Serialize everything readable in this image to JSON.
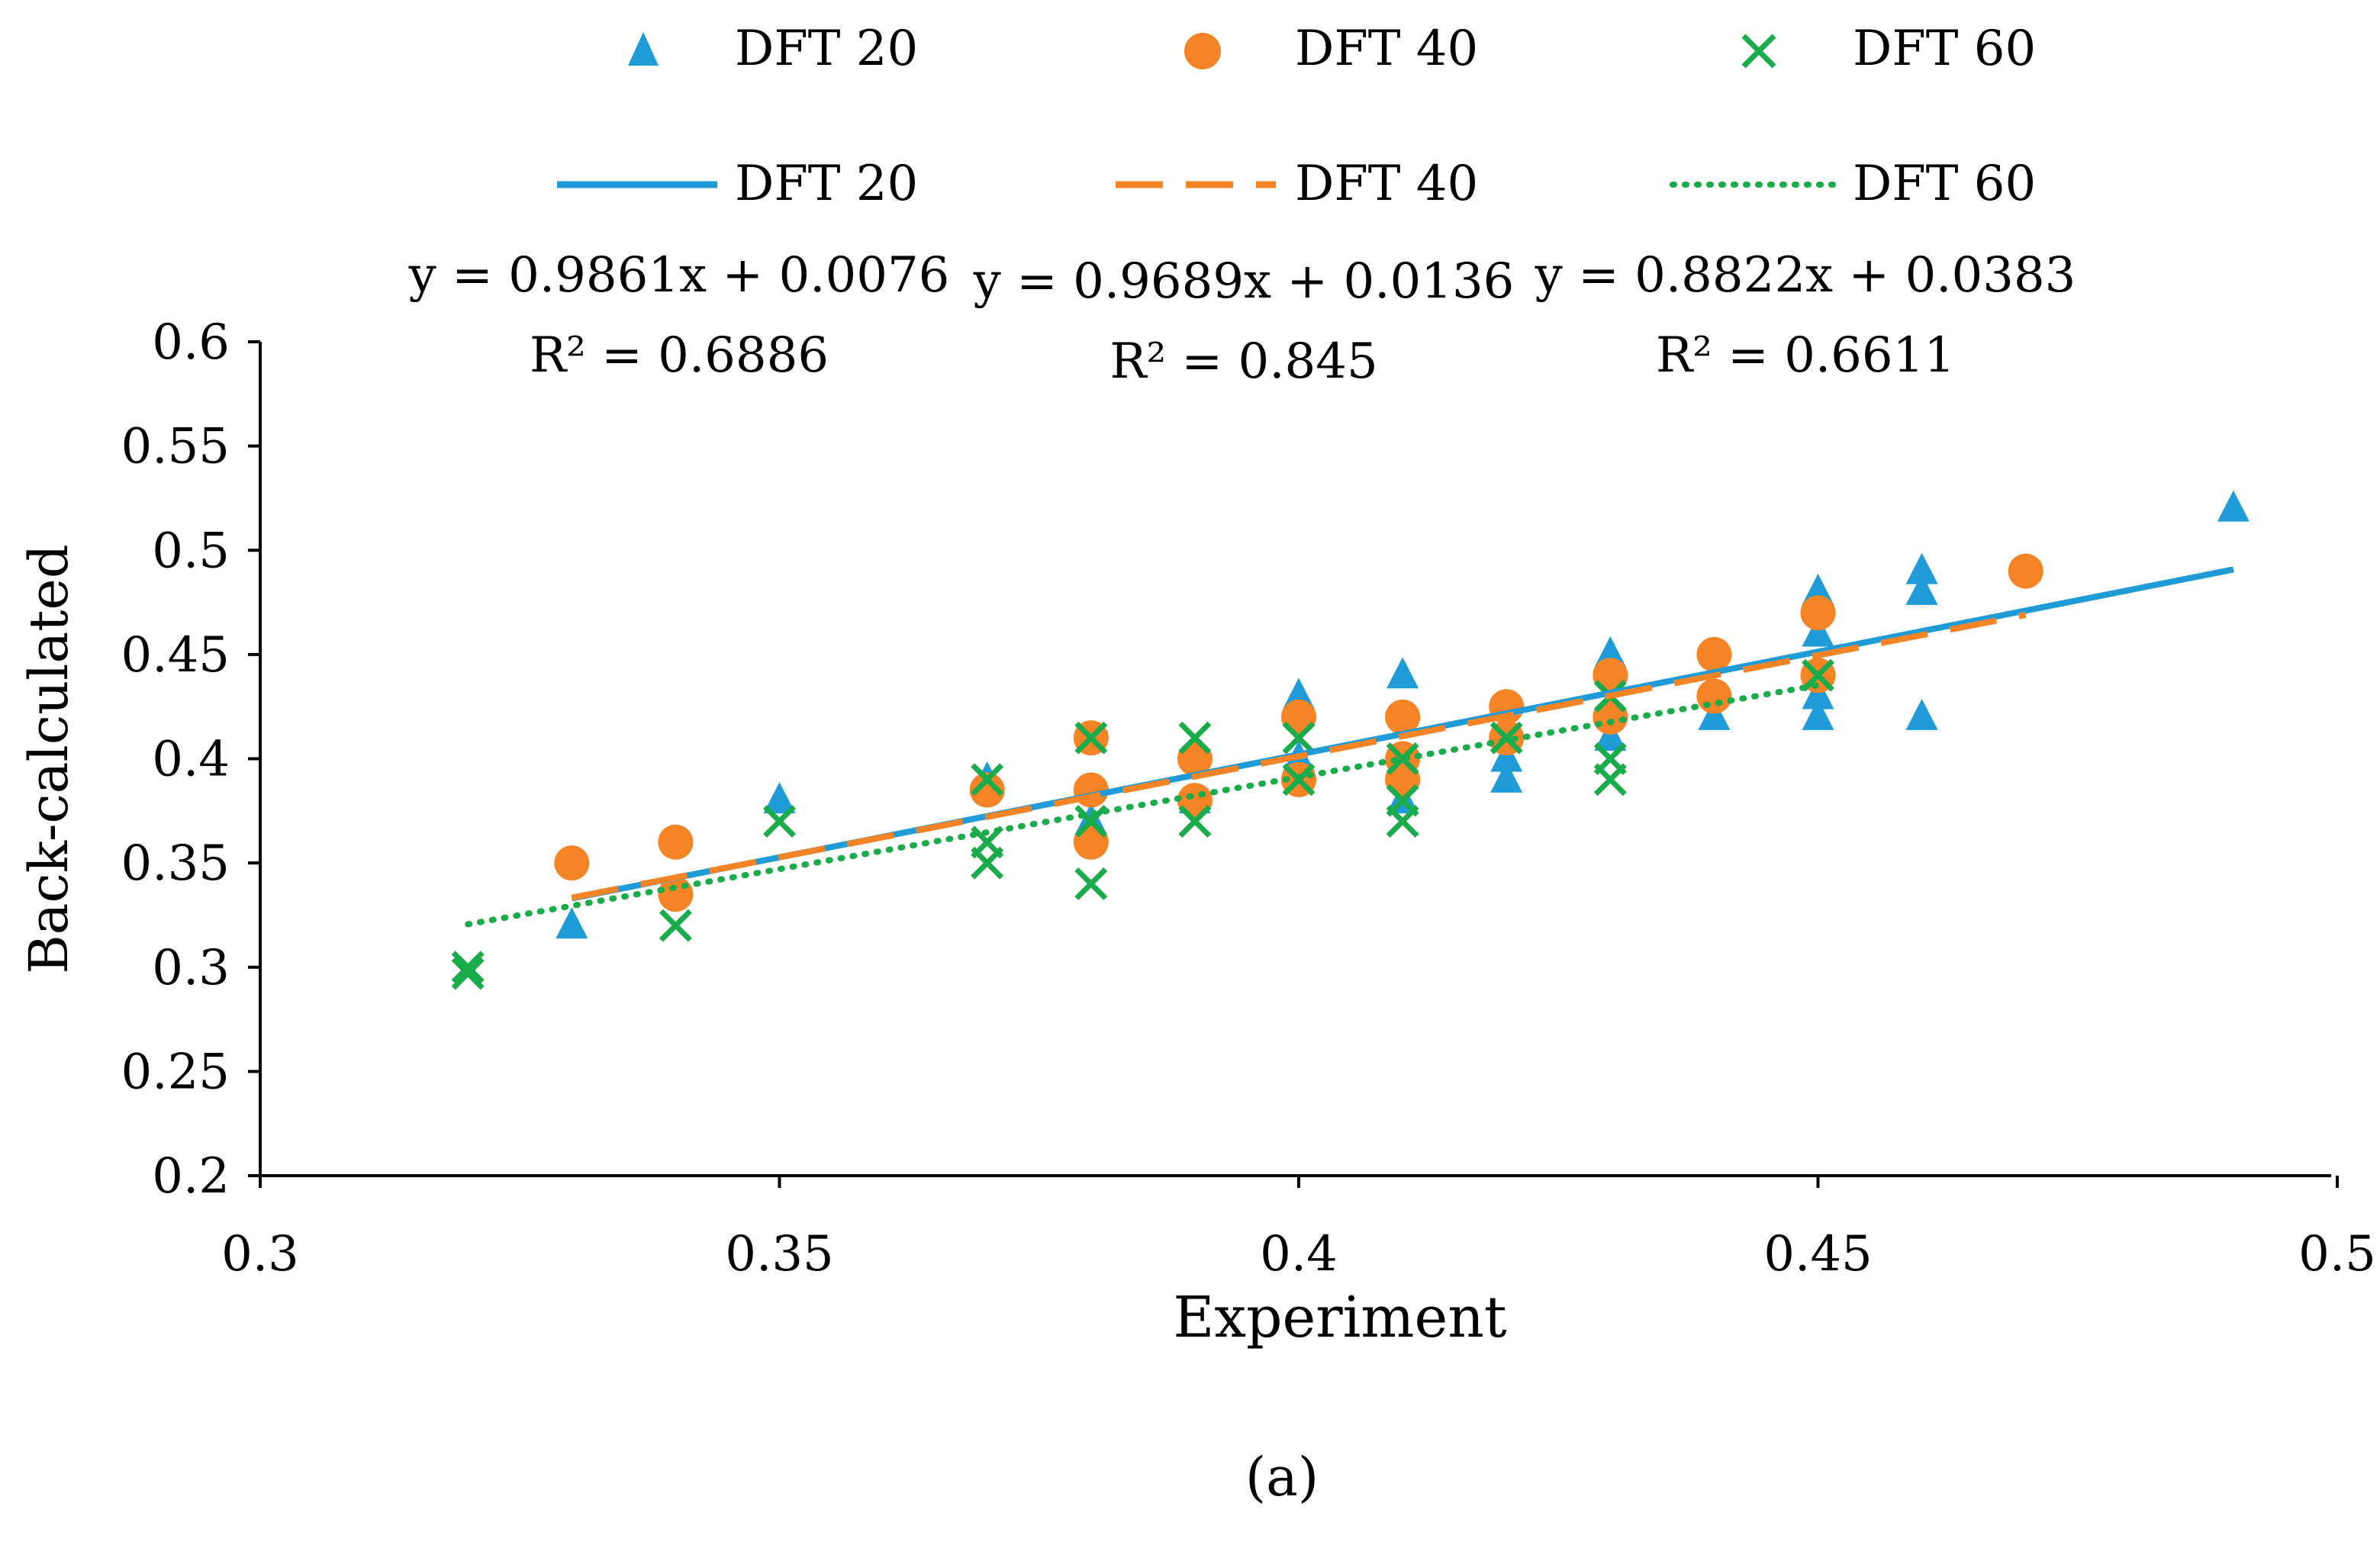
{
  "chart_data": {
    "type": "scatter",
    "title": "",
    "caption": "(a)",
    "xlabel": "Experiment",
    "ylabel": "Back-calculated",
    "xlim": [
      0.3,
      0.5
    ],
    "ylim": [
      0.2,
      0.6
    ],
    "xticks": [
      0.3,
      0.35,
      0.4,
      0.45,
      0.5
    ],
    "yticks": [
      0.2,
      0.25,
      0.3,
      0.35,
      0.4,
      0.45,
      0.5,
      0.55,
      0.6
    ],
    "xtick_labels": [
      "0.3",
      "0.35",
      "0.4",
      "0.45",
      "0.5"
    ],
    "ytick_labels": [
      "0.2",
      "0.25",
      "0.3",
      "0.35",
      "0.4",
      "0.45",
      "0.5",
      "0.55",
      "0.6"
    ],
    "grid": false,
    "legend_position": "top",
    "series": [
      {
        "name": "DFT 20",
        "marker": "triangle",
        "color": "#1f9bd7",
        "points": [
          [
            0.33,
            0.32
          ],
          [
            0.35,
            0.38
          ],
          [
            0.37,
            0.39
          ],
          [
            0.38,
            0.37
          ],
          [
            0.39,
            0.38
          ],
          [
            0.4,
            0.43
          ],
          [
            0.4,
            0.4
          ],
          [
            0.41,
            0.44
          ],
          [
            0.41,
            0.38
          ],
          [
            0.42,
            0.39
          ],
          [
            0.42,
            0.4
          ],
          [
            0.43,
            0.45
          ],
          [
            0.43,
            0.41
          ],
          [
            0.44,
            0.42
          ],
          [
            0.45,
            0.48
          ],
          [
            0.45,
            0.46
          ],
          [
            0.45,
            0.43
          ],
          [
            0.45,
            0.42
          ],
          [
            0.46,
            0.49
          ],
          [
            0.46,
            0.48
          ],
          [
            0.46,
            0.42
          ],
          [
            0.49,
            0.52
          ]
        ]
      },
      {
        "name": "DFT 40",
        "marker": "circle",
        "color": "#f58426",
        "points": [
          [
            0.33,
            0.35
          ],
          [
            0.34,
            0.36
          ],
          [
            0.34,
            0.335
          ],
          [
            0.37,
            0.385
          ],
          [
            0.38,
            0.41
          ],
          [
            0.38,
            0.385
          ],
          [
            0.38,
            0.36
          ],
          [
            0.39,
            0.4
          ],
          [
            0.39,
            0.38
          ],
          [
            0.4,
            0.42
          ],
          [
            0.4,
            0.39
          ],
          [
            0.41,
            0.42
          ],
          [
            0.41,
            0.4
          ],
          [
            0.41,
            0.39
          ],
          [
            0.42,
            0.425
          ],
          [
            0.42,
            0.41
          ],
          [
            0.43,
            0.44
          ],
          [
            0.43,
            0.42
          ],
          [
            0.44,
            0.45
          ],
          [
            0.44,
            0.43
          ],
          [
            0.45,
            0.47
          ],
          [
            0.45,
            0.44
          ],
          [
            0.47,
            0.49
          ]
        ]
      },
      {
        "name": "DFT 60",
        "marker": "x",
        "color": "#1aab4b",
        "points": [
          [
            0.32,
            0.3
          ],
          [
            0.32,
            0.297
          ],
          [
            0.34,
            0.32
          ],
          [
            0.35,
            0.37
          ],
          [
            0.37,
            0.39
          ],
          [
            0.37,
            0.36
          ],
          [
            0.37,
            0.35
          ],
          [
            0.38,
            0.41
          ],
          [
            0.38,
            0.37
          ],
          [
            0.38,
            0.34
          ],
          [
            0.39,
            0.41
          ],
          [
            0.39,
            0.37
          ],
          [
            0.4,
            0.41
          ],
          [
            0.4,
            0.39
          ],
          [
            0.41,
            0.4
          ],
          [
            0.41,
            0.38
          ],
          [
            0.41,
            0.37
          ],
          [
            0.42,
            0.41
          ],
          [
            0.43,
            0.43
          ],
          [
            0.43,
            0.4
          ],
          [
            0.43,
            0.39
          ],
          [
            0.45,
            0.44
          ]
        ]
      }
    ],
    "trendlines": [
      {
        "name": "DFT 20",
        "style": "solid",
        "color": "#1f9bd7",
        "slope": 0.9861,
        "intercept": 0.0076,
        "x_range": [
          0.33,
          0.49
        ],
        "equation": "y = 0.9861x + 0.0076",
        "r2": "R² = 0.6886"
      },
      {
        "name": "DFT 40",
        "style": "dashed",
        "color": "#f58426",
        "slope": 0.9689,
        "intercept": 0.0136,
        "x_range": [
          0.33,
          0.47
        ],
        "equation": "y = 0.9689x + 0.0136",
        "r2": "R² = 0.845"
      },
      {
        "name": "DFT 60",
        "style": "dotted",
        "color": "#1aab4b",
        "slope": 0.8822,
        "intercept": 0.0383,
        "x_range": [
          0.32,
          0.45
        ],
        "equation": "y = 0.8822x + 0.0383",
        "r2": "R² = 0.6611"
      }
    ]
  }
}
